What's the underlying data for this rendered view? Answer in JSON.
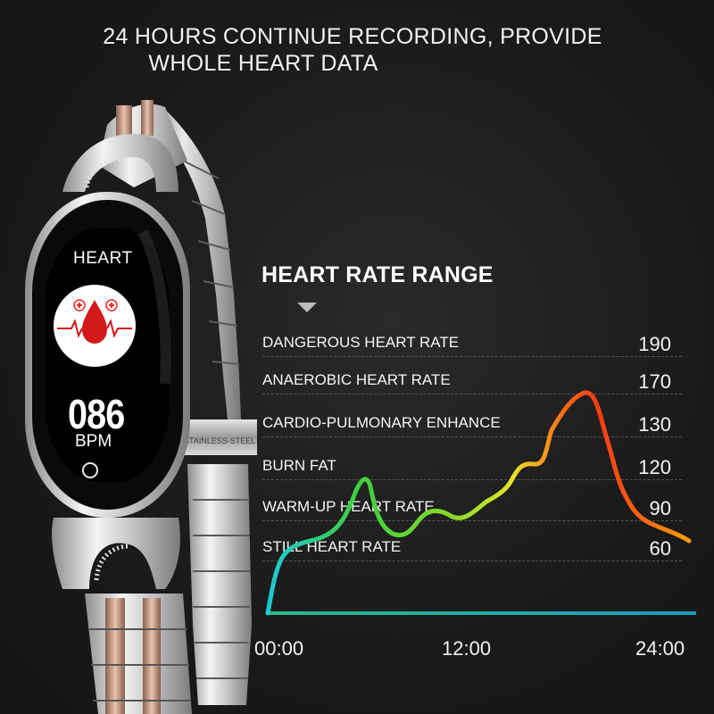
{
  "headline": {
    "line1": "24 HOURS CONTINUE RECORDING, PROVIDE",
    "line2": "WHOLE HEART DATA"
  },
  "watch": {
    "screen_label": "HEART",
    "bpm_value": "086",
    "bpm_unit": "BPM",
    "clasp_text": "STAINLESS-STEEL",
    "icons": [
      "blood-drop-icon",
      "medical-cross-icon",
      "heartbeat-line-icon",
      "home-button-icon"
    ]
  },
  "range": {
    "title": "HEART RATE RANGE",
    "zones": [
      {
        "label": "DANGEROUS HEART RATE",
        "value": "190"
      },
      {
        "label": "ANAEROBIC HEART RATE",
        "value": "170"
      },
      {
        "label": "CARDIO-PULMONARY ENHANCE",
        "value": "130"
      },
      {
        "label": "BURN FAT",
        "value": "120"
      },
      {
        "label": "WARM-UP HEART RATE",
        "value": "90"
      },
      {
        "label": "STILL HEART RATE",
        "value": "60"
      }
    ]
  },
  "chart_data": {
    "type": "line",
    "title": "HEART RATE RANGE",
    "x_ticks": [
      "00:00",
      "12:00",
      "24:00"
    ],
    "colors": [
      "#1ec8d6",
      "#3ccf3c",
      "#e9e32a",
      "#ff3a14",
      "#f9a000"
    ]
  }
}
